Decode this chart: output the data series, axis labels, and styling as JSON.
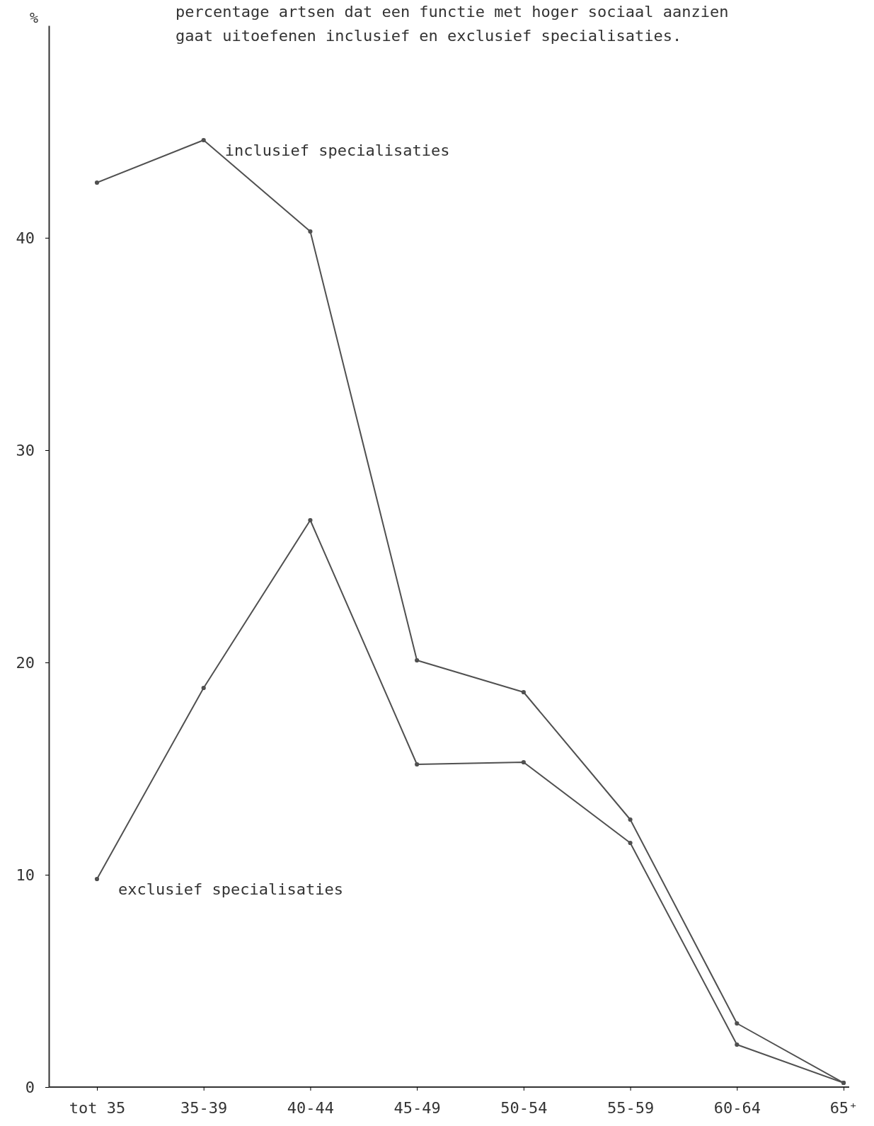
{
  "chart_data": {
    "type": "line",
    "title": "percentage artsen dat een functie met hoger sociaal aanzien gaat uitoefenen inclusief en exclusief specialisaties.",
    "ylabel": "%",
    "categories": [
      "tot 35",
      "35-39",
      "40-44",
      "45-49",
      "50-54",
      "55-59",
      "60-64",
      "65⁺"
    ],
    "series": [
      {
        "name": "inclusief specialisaties",
        "color": "#505050",
        "values": [
          42.6,
          44.6,
          40.3,
          20.1,
          18.6,
          12.6,
          3.0,
          0.2
        ]
      },
      {
        "name": "exclusief specialisaties",
        "color": "#505050",
        "values": [
          9.8,
          18.8,
          26.7,
          15.2,
          15.3,
          11.5,
          2.0,
          0.2
        ]
      }
    ],
    "ylim": [
      0,
      50
    ],
    "yticks": [
      0,
      10,
      20,
      30,
      40
    ],
    "grid": false,
    "marker": "circle",
    "line_style": "solid"
  }
}
